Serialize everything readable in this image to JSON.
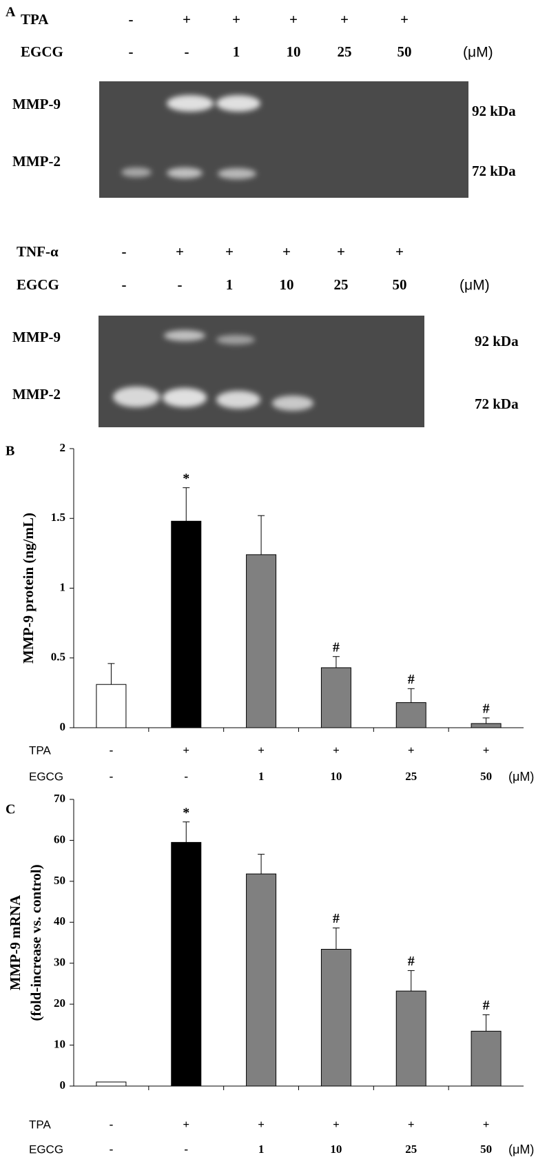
{
  "panel_labels": [
    "A",
    "B",
    "C"
  ],
  "gel_panels": [
    {
      "rows": [
        {
          "name": "TPA",
          "labels": [
            "-",
            "+",
            "+",
            "+",
            "+",
            "+"
          ]
        },
        {
          "name": "EGCG",
          "labels": [
            "-",
            "-",
            "1",
            "10",
            "25",
            "50"
          ]
        }
      ],
      "unit": "(μM)",
      "bands": [
        "MMP-9",
        "MMP-2"
      ],
      "sizes": [
        "92 kDa",
        "72 kDa"
      ]
    },
    {
      "rows": [
        {
          "name": "TNF-α",
          "labels": [
            "-",
            "+",
            "+",
            "+",
            "+",
            "+"
          ]
        },
        {
          "name": "EGCG",
          "labels": [
            "-",
            "-",
            "1",
            "10",
            "25",
            "50"
          ]
        }
      ],
      "unit": "(μM)",
      "bands": [
        "MMP-9",
        "MMP-2"
      ],
      "sizes": [
        "92 kDa",
        "72 kDa"
      ]
    }
  ],
  "chart_data": [
    {
      "type": "bar",
      "ylabel": [
        "MMP-9 protein (ng/mL)"
      ],
      "values": [
        0.31,
        1.48,
        1.24,
        0.43,
        0.18,
        0.03
      ],
      "errors": [
        0.15,
        0.24,
        0.28,
        0.08,
        0.1,
        0.04
      ],
      "colors": [
        "#ffffff",
        "#000000",
        "#808080",
        "#808080",
        "#808080",
        "#808080"
      ],
      "markers": [
        null,
        "*",
        null,
        "#",
        "#",
        "#"
      ],
      "ylim": [
        0,
        2
      ],
      "yticks": [
        0,
        0.5,
        1,
        1.5,
        2
      ],
      "rows": [
        {
          "name": "TPA",
          "labels": [
            "-",
            "+",
            "+",
            "+",
            "+",
            "+"
          ]
        },
        {
          "name": "EGCG",
          "labels": [
            "-",
            "-",
            "1",
            "10",
            "25",
            "50"
          ]
        }
      ],
      "unit": "(μM)"
    },
    {
      "type": "bar",
      "ylabel": [
        "MMP-9 mRNA",
        "(fold-increase vs. control)"
      ],
      "values": [
        1,
        59.5,
        51.8,
        33.4,
        23.2,
        13.4
      ],
      "errors": [
        null,
        5,
        4.8,
        5.2,
        5,
        4
      ],
      "colors": [
        "#ffffff",
        "#000000",
        "#808080",
        "#808080",
        "#808080",
        "#808080"
      ],
      "markers": [
        null,
        "*",
        null,
        "#",
        "#",
        "#"
      ],
      "ylim": [
        0,
        70
      ],
      "yticks": [
        0,
        10,
        20,
        30,
        40,
        50,
        60,
        70
      ],
      "rows": [
        {
          "name": "TPA",
          "labels": [
            "-",
            "+",
            "+",
            "+",
            "+",
            "+"
          ]
        },
        {
          "name": "EGCG",
          "labels": [
            "-",
            "-",
            "1",
            "10",
            "25",
            "50"
          ]
        }
      ],
      "unit": "(μM)"
    }
  ]
}
